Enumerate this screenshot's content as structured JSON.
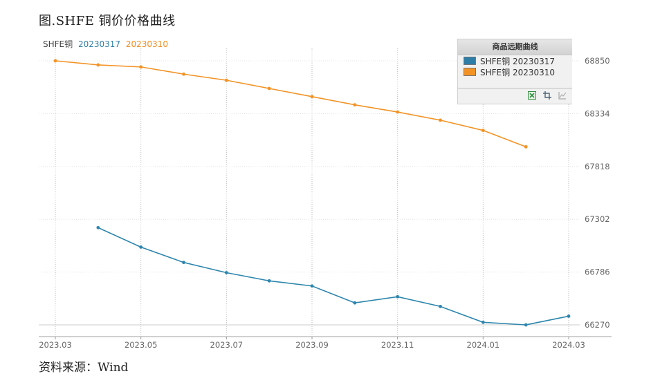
{
  "figure": {
    "title": "图.SHFE 铜价价格曲线",
    "source": "资料来源：Wind"
  },
  "header_labels": [
    {
      "text": "SHFE铜",
      "color": "#444444"
    },
    {
      "text": "20230317",
      "color": "#2e7fa8"
    },
    {
      "text": "20230310",
      "color": "#f08c1e"
    }
  ],
  "legend": {
    "title": "商品远期曲线",
    "items": [
      {
        "label": "SHFE铜 20230317",
        "color": "#2e7da6"
      },
      {
        "label": "SHFE铜 20230310",
        "color": "#f39325"
      }
    ],
    "tools": [
      "excel-icon",
      "crop-icon",
      "chart-icon"
    ]
  },
  "chart_data": {
    "type": "line",
    "x_ticks": [
      "2023.03",
      "2023.05",
      "2023.07",
      "2023.09",
      "2023.11",
      "2024.01",
      "2024.03"
    ],
    "y_ticks": [
      66270,
      66786,
      67302,
      67818,
      68334,
      68850
    ],
    "ylim": [
      66270,
      68850
    ],
    "xlim": [
      "2023.03",
      "2024.03"
    ],
    "grid": true,
    "legend_position": "top-right",
    "series": [
      {
        "name": "SHFE铜 20230317",
        "color": "#2e86ad",
        "points": [
          {
            "x": "2023-04",
            "y": 67220
          },
          {
            "x": "2023-05",
            "y": 67030
          },
          {
            "x": "2023-06",
            "y": 66880
          },
          {
            "x": "2023-07",
            "y": 66780
          },
          {
            "x": "2023-08",
            "y": 66700
          },
          {
            "x": "2023-09",
            "y": 66650
          },
          {
            "x": "2023-10",
            "y": 66485
          },
          {
            "x": "2023-11",
            "y": 66545
          },
          {
            "x": "2023-12",
            "y": 66450
          },
          {
            "x": "2024-01",
            "y": 66295
          },
          {
            "x": "2024-02",
            "y": 66270
          },
          {
            "x": "2024-03",
            "y": 66355
          }
        ]
      },
      {
        "name": "SHFE铜 20230310",
        "color": "#f39325",
        "points": [
          {
            "x": "2023-03",
            "y": 68850
          },
          {
            "x": "2023-04",
            "y": 68810
          },
          {
            "x": "2023-05",
            "y": 68790
          },
          {
            "x": "2023-06",
            "y": 68720
          },
          {
            "x": "2023-07",
            "y": 68660
          },
          {
            "x": "2023-08",
            "y": 68580
          },
          {
            "x": "2023-09",
            "y": 68500
          },
          {
            "x": "2023-10",
            "y": 68420
          },
          {
            "x": "2023-11",
            "y": 68350
          },
          {
            "x": "2023-12",
            "y": 68270
          },
          {
            "x": "2024-01",
            "y": 68170
          },
          {
            "x": "2024-02",
            "y": 68010
          }
        ]
      }
    ]
  }
}
